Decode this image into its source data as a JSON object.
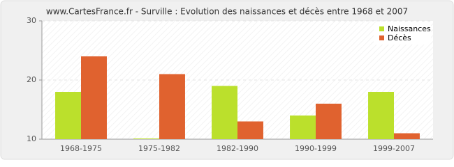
{
  "chart_data": {
    "type": "bar",
    "title": "www.CartesFrance.fr - Surville : Evolution des naissances et décès entre 1968 et 2007",
    "categories": [
      "1968-1975",
      "1975-1982",
      "1982-1990",
      "1990-1999",
      "1999-2007"
    ],
    "series": [
      {
        "name": "Naissances",
        "color": "#bbe02c",
        "values": [
          18,
          10,
          19,
          14,
          18
        ]
      },
      {
        "name": "Décès",
        "color": "#e0622f",
        "values": [
          24,
          21,
          13,
          16,
          11
        ]
      }
    ],
    "ylim": [
      10,
      30
    ],
    "yticks": [
      10,
      20,
      30
    ],
    "grid": true,
    "legend": "top-right"
  }
}
